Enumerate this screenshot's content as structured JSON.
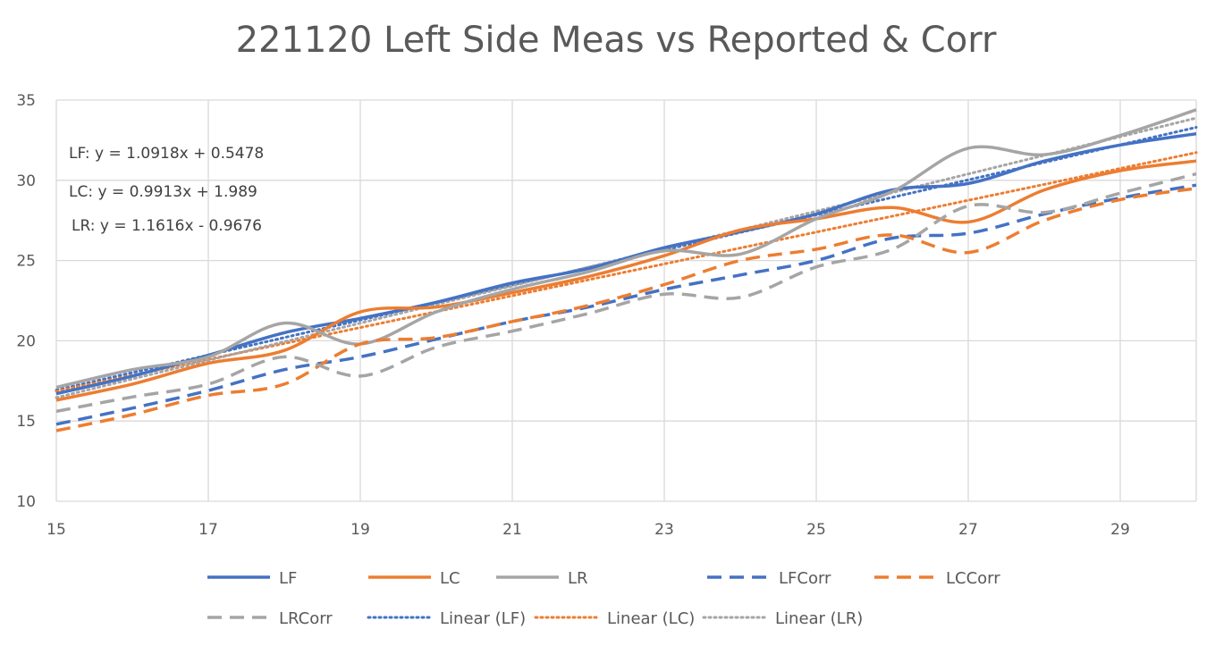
{
  "chart_data": {
    "type": "line",
    "title": "221120 Left Side Meas vs Reported & Corr",
    "xlim": [
      15,
      30
    ],
    "ylim": [
      10,
      35
    ],
    "x_ticks": [
      15,
      17,
      19,
      21,
      23,
      25,
      27,
      29
    ],
    "y_ticks": [
      10,
      15,
      20,
      25,
      30,
      35
    ],
    "grid": true,
    "legend_position": "bottom",
    "x": [
      15,
      16,
      17,
      18,
      19,
      20,
      21,
      22,
      23,
      24,
      25,
      26,
      27,
      28,
      29,
      30
    ],
    "series": [
      {
        "name": "LF",
        "color": "#4472C4",
        "style": "solid",
        "values": [
          16.7,
          17.8,
          19.1,
          20.5,
          21.4,
          22.4,
          23.6,
          24.5,
          25.8,
          26.8,
          27.9,
          29.4,
          29.8,
          31.2,
          32.2,
          32.9
        ]
      },
      {
        "name": "LC",
        "color": "#ED7D31",
        "style": "solid",
        "values": [
          16.3,
          17.3,
          18.6,
          19.4,
          21.8,
          22.1,
          23.0,
          24.0,
          25.3,
          26.9,
          27.6,
          28.3,
          27.4,
          29.4,
          30.6,
          31.2
        ]
      },
      {
        "name": "LR",
        "color": "#A5A5A5",
        "style": "solid",
        "values": [
          17.1,
          18.2,
          19.0,
          21.1,
          19.8,
          21.8,
          23.2,
          24.3,
          25.6,
          25.4,
          27.6,
          29.3,
          32.0,
          31.6,
          32.8,
          34.4
        ]
      },
      {
        "name": "LFCorr",
        "color": "#4472C4",
        "style": "dashed",
        "values": [
          14.8,
          15.8,
          16.9,
          18.2,
          19.0,
          20.1,
          21.2,
          22.1,
          23.2,
          24.1,
          25.0,
          26.4,
          26.7,
          27.9,
          28.9,
          29.7
        ]
      },
      {
        "name": "LCCorr",
        "color": "#ED7D31",
        "style": "dashed",
        "values": [
          14.4,
          15.4,
          16.6,
          17.3,
          19.8,
          20.2,
          21.2,
          22.2,
          23.5,
          25.0,
          25.7,
          26.6,
          25.5,
          27.5,
          28.8,
          29.5
        ]
      },
      {
        "name": "LRCorr",
        "color": "#A5A5A5",
        "style": "dashed",
        "values": [
          15.6,
          16.5,
          17.3,
          19.0,
          17.8,
          19.6,
          20.6,
          21.7,
          22.9,
          22.7,
          24.6,
          25.7,
          28.4,
          28.0,
          29.2,
          30.4
        ]
      }
    ],
    "trendlines": [
      {
        "name": "Linear (LF)",
        "of": "LF",
        "color": "#4472C4",
        "slope": 1.0918,
        "intercept": 0.5478,
        "equation": "LF: y = 1.0918x + 0.5478"
      },
      {
        "name": "Linear (LC)",
        "of": "LC",
        "color": "#ED7D31",
        "slope": 0.9913,
        "intercept": 1.989,
        "equation": "LC: y = 0.9913x + 1.989"
      },
      {
        "name": "Linear (LR)",
        "of": "LR",
        "color": "#A5A5A5",
        "slope": 1.1616,
        "intercept": -0.9676,
        "equation": "LR: y = 1.1616x - 0.9676"
      }
    ]
  }
}
